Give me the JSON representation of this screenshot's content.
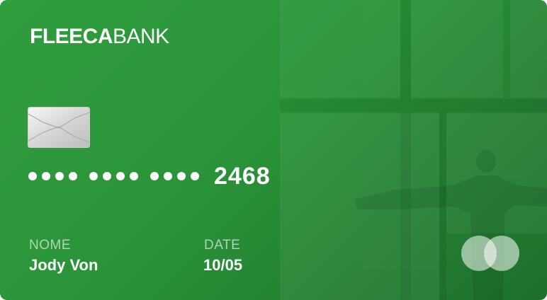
{
  "card": {
    "brand_bold": "FLEECA",
    "brand_regular": "BANK",
    "masked_groups": 3,
    "last_four": "2468",
    "name_label": "NOME",
    "name_value": "Jody Von",
    "date_label": "DATE",
    "date_value": "10/05",
    "card_color": "#2a9339",
    "chip_icon": "chip-icon",
    "network_icon": "card-network-logo-icon"
  }
}
